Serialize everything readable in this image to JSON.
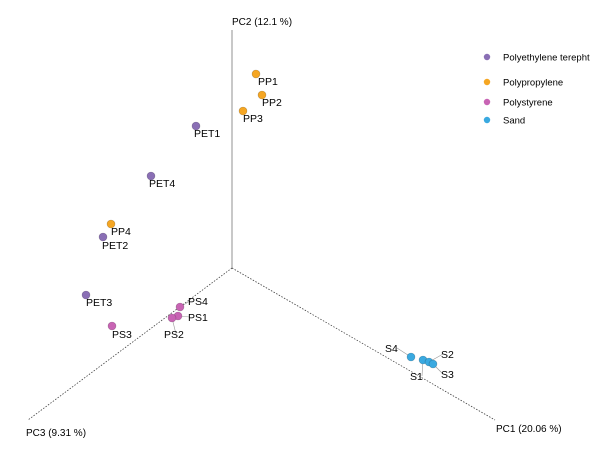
{
  "chart_data": {
    "type": "scatter",
    "projection": "3d",
    "axes": {
      "x": "PC1 (20.06 %)",
      "y": "PC2 (12.1 %)",
      "z": "PC3 (9.31 %)"
    },
    "grid": false,
    "legend_placement": "top-right",
    "groups": [
      {
        "name": "Polyethylene terepht",
        "color": "#8a6fb5"
      },
      {
        "name": "Polypropylene",
        "color": "#f5a623"
      },
      {
        "name": "Polystyrene",
        "color": "#c864b4"
      },
      {
        "name": "Sand",
        "color": "#3aa9e0"
      }
    ],
    "points": [
      {
        "label": "PP1",
        "group": 1
      },
      {
        "label": "PP2",
        "group": 1
      },
      {
        "label": "PP3",
        "group": 1
      },
      {
        "label": "PET1",
        "group": 0
      },
      {
        "label": "PET4",
        "group": 0
      },
      {
        "label": "PP4",
        "group": 1
      },
      {
        "label": "PET2",
        "group": 0
      },
      {
        "label": "PET3",
        "group": 0
      },
      {
        "label": "PS3",
        "group": 2
      },
      {
        "label": "PS4",
        "group": 2
      },
      {
        "label": "PS1",
        "group": 2
      },
      {
        "label": "PS2",
        "group": 2
      },
      {
        "label": "S4",
        "group": 3
      },
      {
        "label": "S1",
        "group": 3
      },
      {
        "label": "S2",
        "group": 3
      },
      {
        "label": "S3",
        "group": 3
      }
    ]
  }
}
